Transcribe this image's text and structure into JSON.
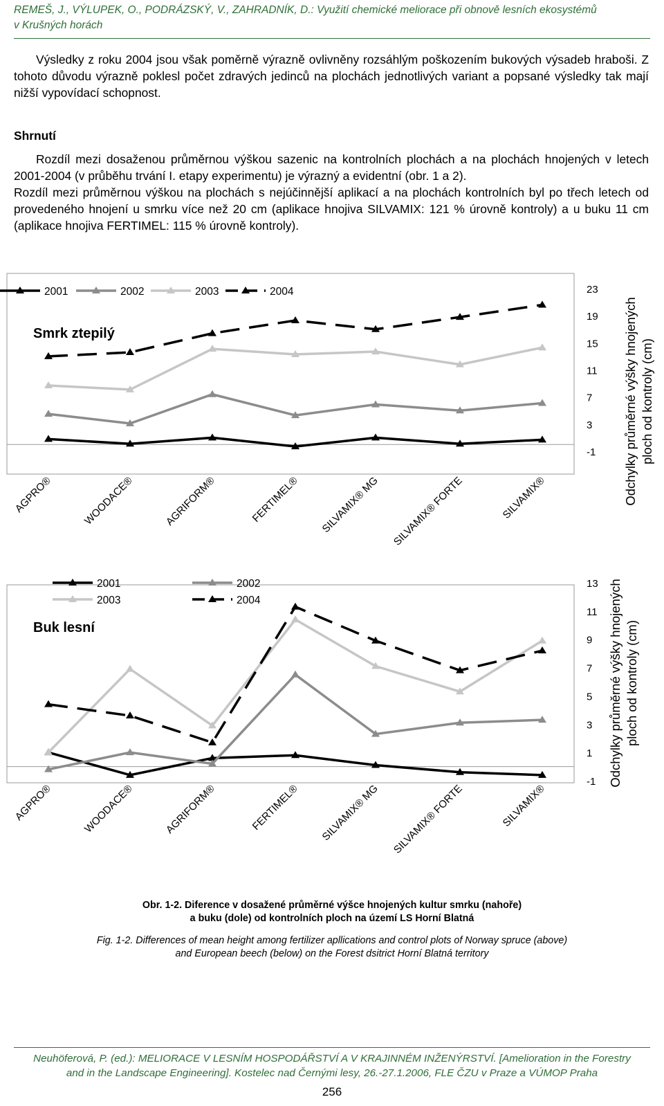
{
  "header": {
    "line1": "REMEŠ, J., VÝLUPEK, O., PODRÁZSKÝ, V., ZAHRADNÍK, D.: Využití chemické meliorace při obnově lesních ekosystémů",
    "line2": "v Krušných horách"
  },
  "intro_paragraph": "Výsledky z roku 2004 jsou však poměrně výrazně ovlivněny rozsáhlým poškozením bukových výsadeb hraboši. Z tohoto důvodu výrazně poklesl počet zdravých jedinců na plochách jednotlivých variant a popsané výsledky tak mají nižší vypovídací schopnost.",
  "summary_heading": "Shrnutí",
  "summary_paragraph_1": "Rozdíl mezi dosaženou průměrnou výškou sazenic na kontrolních plochách a na plochách hnojených v letech 2001-2004 (v průběhu trvání I. etapy experimentu) je výrazný a evidentní (obr. 1 a 2).",
  "summary_paragraph_2": "Rozdíl mezi průměrnou výškou na plochách s nejúčinnější aplikací a na plochách kontrolních byl po třech letech od provedeného hnojení u smrku více než 20 cm (aplikace hnojiva SILVAMIX: 121 % úrovně kontroly) a u buku 11 cm (aplikace hnojiva FERTIMEL: 115 % úrovně kontroly).",
  "chart_data": [
    {
      "type": "line",
      "title": "Smrk ztepilý",
      "ylabel": "Odchylky průměrné výšky hnojených ploch od kontroly (cm)",
      "categories": [
        "AGPRO®",
        "WOODACE®",
        "AGRIFORM®",
        "FERTIMEL®",
        "SILVAMIX® MG",
        "SILVAMIX® FORTE",
        "SILVAMIX®"
      ],
      "ylim": [
        -1,
        23
      ],
      "yticks": [
        "23",
        "19",
        "15",
        "11",
        "7",
        "3",
        "-1"
      ],
      "legend_position": "top",
      "grid": false,
      "series": [
        {
          "name": "2001",
          "values": [
            0.8,
            0.1,
            1.0,
            -0.3,
            1.0,
            0.1,
            0.7
          ]
        },
        {
          "name": "2002",
          "values": [
            4.5,
            3.1,
            7.4,
            4.3,
            5.9,
            5.0,
            6.1
          ]
        },
        {
          "name": "2003",
          "values": [
            8.7,
            8.1,
            14.1,
            13.3,
            13.7,
            11.8,
            14.3
          ]
        },
        {
          "name": "2004",
          "values": [
            13.0,
            13.6,
            16.4,
            18.3,
            17.0,
            18.8,
            20.6
          ]
        }
      ]
    },
    {
      "type": "line",
      "title": "Buk lesní",
      "ylabel": "Odchylky průměrné výšky hnojených ploch od kontroly (cm)",
      "categories": [
        "AGPRO®",
        "WOODACE®",
        "AGRIFORM®",
        "FERTIMEL®",
        "SILVAMIX® MG",
        "SILVAMIX® FORTE",
        "SILVAMIX®"
      ],
      "ylim": [
        -1,
        13
      ],
      "yticks": [
        "13",
        "11",
        "9",
        "7",
        "5",
        "3",
        "1",
        "-1"
      ],
      "legend_position": "top-left",
      "grid": false,
      "series": [
        {
          "name": "2001",
          "values": [
            1.0,
            -0.6,
            0.6,
            0.8,
            0.1,
            -0.4,
            -0.6
          ]
        },
        {
          "name": "2002",
          "values": [
            -0.2,
            1.0,
            0.2,
            6.5,
            2.3,
            3.1,
            3.3
          ]
        },
        {
          "name": "2003",
          "values": [
            1.0,
            6.9,
            2.9,
            10.4,
            7.1,
            5.3,
            8.9
          ]
        },
        {
          "name": "2004",
          "values": [
            4.4,
            3.6,
            1.7,
            11.3,
            8.9,
            6.8,
            8.2
          ]
        }
      ]
    }
  ],
  "chart_style": {
    "colors": {
      "2001": "#000000",
      "2002": "#8c8c8c",
      "2003": "#c6c6c6",
      "2004": "#000000"
    },
    "dashed_series": "2004"
  },
  "caption": {
    "cz_line1": "Obr. 1-2. Diference v dosažené průměrné výšce hnojených kultur smrku (nahoře)",
    "cz_line2": "a buku (dole) od kontrolních ploch na území LS Horní Blatná",
    "en_line1": "Fig. 1-2. Differences of mean height among fertilizer apllications and control plots of Norway spruce (above)",
    "en_line2": "and European beech (below) on the Forest dsitrict Horní Blatná territory"
  },
  "footer": {
    "line1": "Neuhöferová, P. (ed.): MELIORACE V LESNÍM HOSPODÁŘSTVÍ A V KRAJINNÉM INŽENÝRSTVÍ. [Amelioration in the Forestry",
    "line2": "and in the Landscape Engineering]. Kostelec nad Černými lesy, 26.-27.1.2006, FLE ČZU v Praze a VÚMOP Praha"
  },
  "page_number": "256"
}
